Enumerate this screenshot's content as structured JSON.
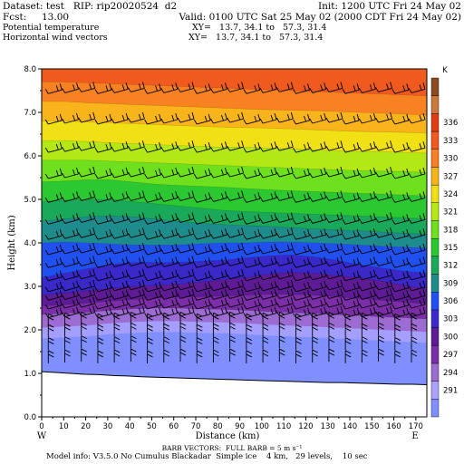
{
  "header": {
    "dataset_line": "Dataset: test   RIP: rip20020524  d2",
    "init_line": "Init: 1200 UTC Fri 24 May 02",
    "fcst_line": "Fcst:     13.00",
    "valid_line": "Valid: 0100 UTC Sat 25 May 02 (2000 CDT Fri 24 May 02)",
    "field1_name": "Potential temperature",
    "field1_xy": "XY=   13.7, 34.1 to   57.3, 31.4",
    "field2_name": "Horizontal wind vectors",
    "field2_xy": "XY=   13.7, 34.1 to   57.3, 31.4"
  },
  "footer": {
    "barb_line": "BARB VECTORS:  FULL BARB = 5 m s⁻¹",
    "model_line": "Model info: V3.5.0 No Cumulus Blackadar  Simple ice    4 km,   29 levels,    10 sec"
  },
  "chart_data": {
    "type": "heatmap",
    "title": "",
    "xlabel": "Distance (km)",
    "ylabel": "Height (km)",
    "xlim": [
      0,
      175
    ],
    "ylim": [
      0,
      8
    ],
    "x_ticks": [
      "0",
      "10",
      "20",
      "30",
      "40",
      "50",
      "60",
      "70",
      "80",
      "90",
      "100",
      "110",
      "120",
      "130",
      "140",
      "150",
      "160",
      "170"
    ],
    "y_ticks": [
      "0.0",
      "1.0",
      "2.0",
      "3.0",
      "4.0",
      "5.0",
      "6.0",
      "7.0",
      "8.0"
    ],
    "x_end_labels": {
      "left": "W",
      "right": "E"
    },
    "colorbar": {
      "unit": "K",
      "levels": [
        291,
        294,
        297,
        300,
        303,
        306,
        309,
        312,
        315,
        318,
        321,
        324,
        327,
        330,
        333,
        336
      ],
      "labels": [
        "291",
        "294",
        "297",
        "300",
        "303",
        "306",
        "309",
        "312",
        "315",
        "318",
        "321",
        "324",
        "327",
        "330",
        "333",
        "336"
      ],
      "colors": [
        "#7f8fff",
        "#a9a0ff",
        "#9c6cd2",
        "#7b2ea8",
        "#5f1a96",
        "#3a28c8",
        "#2050f0",
        "#1e8c8c",
        "#1aa85a",
        "#2cc832",
        "#6ee01e",
        "#b4e814",
        "#f0e014",
        "#f8b41a",
        "#f88222",
        "#f05a1e",
        "#e03c14",
        "#c87838",
        "#8c4a20"
      ]
    },
    "terrain_height_km": [
      1.04,
      1.02,
      1.0,
      0.98,
      0.97,
      0.95,
      0.94,
      0.92,
      0.91,
      0.9,
      0.89,
      0.88,
      0.87,
      0.86,
      0.85,
      0.84,
      0.83,
      0.82,
      0.81,
      0.8,
      0.79,
      0.79,
      0.78,
      0.77,
      0.76,
      0.75,
      0.75,
      0.74
    ],
    "theta_contours": [
      {
        "level": 300,
        "heights_km": [
          2.35,
          2.38,
          2.4,
          2.45,
          2.48,
          2.5,
          2.5,
          2.48,
          2.47,
          2.45,
          2.42,
          2.4,
          2.38,
          2.35,
          2.33,
          2.3,
          2.28,
          2.25
        ]
      },
      {
        "level": 303,
        "heights_km": [
          2.55,
          2.58,
          2.62,
          2.66,
          2.7,
          2.73,
          2.75,
          2.76,
          2.78,
          2.8,
          2.82,
          2.82,
          2.8,
          2.76,
          2.72,
          2.68,
          2.64,
          2.6
        ]
      },
      {
        "level": 306,
        "heights_km": [
          2.8,
          2.85,
          2.9,
          2.95,
          3.0,
          3.02,
          3.05,
          3.1,
          3.15,
          3.2,
          3.28,
          3.32,
          3.3,
          3.25,
          3.2,
          3.12,
          3.02,
          2.95
        ]
      },
      {
        "level": 309,
        "heights_km": [
          3.2,
          3.3,
          3.4,
          3.5,
          3.55,
          3.55,
          3.55,
          3.58,
          3.6,
          3.65,
          3.7,
          3.72,
          3.68,
          3.6,
          3.5,
          3.42,
          3.35,
          3.3
        ]
      },
      {
        "level": 312,
        "heights_km": [
          4.0,
          4.02,
          4.0,
          3.98,
          3.95,
          3.95,
          3.95,
          3.98,
          4.0,
          4.0,
          4.02,
          4.02,
          4.0,
          3.98,
          3.95,
          3.92,
          3.9,
          3.88
        ]
      },
      {
        "level": 315,
        "heights_km": [
          4.5,
          4.55,
          4.6,
          4.62,
          4.6,
          4.55,
          4.5,
          4.45,
          4.42,
          4.4,
          4.38,
          4.35,
          4.32,
          4.3,
          4.28,
          4.25,
          4.22,
          4.2
        ]
      },
      {
        "level": 318,
        "heights_km": [
          4.95,
          4.98,
          5.0,
          5.0,
          4.95,
          4.9,
          4.85,
          4.8,
          4.75,
          4.72,
          4.7,
          4.68,
          4.66,
          4.64,
          4.62,
          4.6,
          4.58,
          4.55
        ]
      },
      {
        "level": 321,
        "heights_km": [
          5.4,
          5.42,
          5.45,
          5.45,
          5.4,
          5.35,
          5.32,
          5.3,
          5.28,
          5.25,
          5.22,
          5.2,
          5.18,
          5.16,
          5.14,
          5.12,
          5.1,
          5.08
        ]
      },
      {
        "level": 324,
        "heights_km": [
          5.9,
          5.9,
          5.9,
          5.88,
          5.86,
          5.84,
          5.82,
          5.8,
          5.78,
          5.76,
          5.74,
          5.72,
          5.7,
          5.68,
          5.66,
          5.65,
          5.64,
          5.62
        ]
      },
      {
        "level": 327,
        "heights_km": [
          6.35,
          6.35,
          6.33,
          6.3,
          6.28,
          6.26,
          6.24,
          6.22,
          6.2,
          6.2,
          6.18,
          6.16,
          6.14,
          6.12,
          6.1,
          6.1,
          6.08,
          6.06
        ]
      },
      {
        "level": 330,
        "heights_km": [
          6.8,
          6.8,
          6.78,
          6.76,
          6.74,
          6.72,
          6.7,
          6.68,
          6.66,
          6.65,
          6.64,
          6.62,
          6.6,
          6.58,
          6.56,
          6.55,
          6.54,
          6.52
        ]
      },
      {
        "level": 333,
        "heights_km": [
          7.25,
          7.25,
          7.22,
          7.2,
          7.18,
          7.16,
          7.14,
          7.12,
          7.1,
          7.08,
          7.06,
          7.05,
          7.04,
          7.02,
          7.0,
          6.98,
          6.96,
          6.94
        ]
      },
      {
        "level": 336,
        "heights_km": [
          7.7,
          7.7,
          7.68,
          7.66,
          7.64,
          7.62,
          7.6,
          7.58,
          7.56,
          7.54,
          7.52,
          7.5,
          7.48,
          7.46,
          7.44,
          7.42,
          7.4,
          7.38
        ]
      }
    ],
    "wind_barb_rows_km": [
      1.25,
      1.55,
      1.85,
      2.1,
      2.3,
      2.5,
      2.7,
      2.9,
      3.15,
      3.45,
      3.75,
      4.1,
      4.45,
      4.95,
      5.5,
      6.1,
      6.75,
      7.45
    ],
    "wind_barb_columns_km": [
      3,
      10.5,
      18,
      25.5,
      33,
      40.5,
      48,
      55.5,
      63,
      70.5,
      78,
      85.5,
      93,
      100.5,
      108,
      115.5,
      123,
      130.5,
      138,
      145.5,
      153,
      160.5,
      168
    ]
  }
}
